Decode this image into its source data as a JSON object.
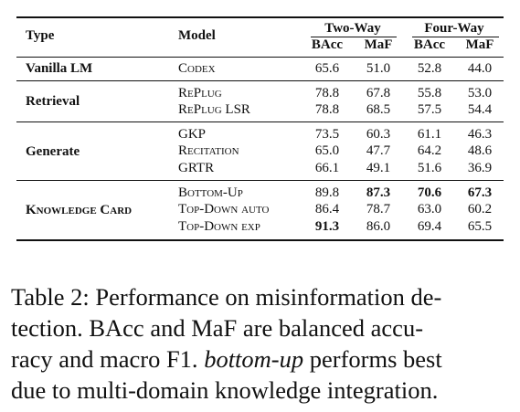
{
  "table": {
    "header": {
      "type": "Type",
      "model": "Model",
      "group1": "Two-Way",
      "group2": "Four-Way",
      "cols": [
        "BAcc",
        "MaF",
        "BAcc",
        "MaF"
      ]
    },
    "groups": [
      {
        "type": "Vanilla LM",
        "rows": [
          {
            "model": "Codex",
            "values": [
              "65.6",
              "51.0",
              "52.8",
              "44.0"
            ]
          }
        ]
      },
      {
        "type": "Retrieval",
        "rows": [
          {
            "model": "RePlug",
            "values": [
              "78.8",
              "67.8",
              "55.8",
              "53.0"
            ]
          },
          {
            "model": "RePlug LSR",
            "values": [
              "78.8",
              "68.5",
              "57.5",
              "54.4"
            ]
          }
        ]
      },
      {
        "type": "Generate",
        "rows": [
          {
            "model": "GKP",
            "values": [
              "73.5",
              "60.3",
              "61.1",
              "46.3"
            ]
          },
          {
            "model": "Recitation",
            "values": [
              "65.0",
              "47.7",
              "64.2",
              "48.6"
            ]
          },
          {
            "model": "GRTR",
            "values": [
              "66.1",
              "49.1",
              "51.6",
              "36.9"
            ]
          }
        ]
      },
      {
        "type": "Knowledge Card",
        "rows": [
          {
            "model": "Bottom-Up",
            "values": [
              "89.8",
              "87.3",
              "70.6",
              "67.3"
            ]
          },
          {
            "model": "Top-Down auto",
            "values": [
              "86.4",
              "78.7",
              "63.0",
              "60.2"
            ]
          },
          {
            "model": "Top-Down exp",
            "values": [
              "91.3",
              "86.0",
              "69.4",
              "65.5"
            ]
          }
        ]
      }
    ]
  },
  "caption": {
    "line1": "Table 2: Performance on misinformation de-",
    "line2": "tection.  BAcc and MaF are balanced accu-",
    "line3a": "racy and macro F1.",
    "line3b": "bottom-up",
    "line3c": "performs best",
    "line4": "due to multi-domain knowledge integration."
  }
}
